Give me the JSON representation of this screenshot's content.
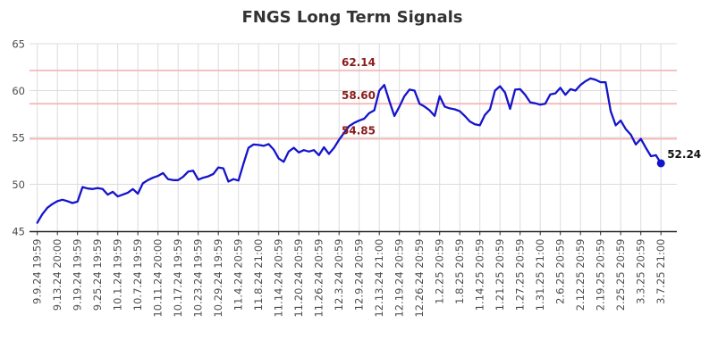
{
  "title": "FNGS Long Term Signals",
  "chart_data": {
    "type": "line",
    "title": "FNGS Long Term Signals",
    "xlabel": "",
    "ylabel": "",
    "ylim": [
      45,
      65
    ],
    "yticks": [
      45,
      50,
      55,
      60,
      65
    ],
    "grid": true,
    "legend": "none",
    "x_tick_labels": [
      "9.9.24 19:59",
      "9.13.24 20:00",
      "9.19.24 19:59",
      "9.25.24 19:59",
      "10.1.24 19:59",
      "10.7.24 19:59",
      "10.11.24 20:00",
      "10.17.24 19:59",
      "10.23.24 19:59",
      "10.29.24 19:59",
      "11.4.24 20:59",
      "11.8.24 21:00",
      "11.14.24 20:59",
      "11.20.24 20:59",
      "11.26.24 20:59",
      "12.3.24 20:59",
      "12.9.24 20:59",
      "12.13.24 21:00",
      "12.19.24 20:59",
      "12.26.24 20:59",
      "1.2.25 20:59",
      "1.8.25 20:59",
      "1.14.25 20:59",
      "1.21.25 20:59",
      "1.27.25 20:59",
      "1.31.25 21:00",
      "2.6.25 20:59",
      "2.12.25 20:59",
      "2.19.25 20:59",
      "2.25.25 20:59",
      "3.3.25 20:59",
      "3.7.25 21:00"
    ],
    "points_per_label_interval": 4,
    "series": [
      {
        "name": "FNGS",
        "color": "#1414cc",
        "values": [
          45.9,
          46.8,
          47.5,
          47.9,
          48.2,
          48.35,
          48.2,
          48.0,
          48.15,
          49.7,
          49.55,
          49.5,
          49.6,
          49.5,
          48.9,
          49.2,
          48.7,
          48.9,
          49.1,
          49.5,
          49.0,
          50.1,
          50.45,
          50.7,
          50.9,
          51.2,
          50.55,
          50.45,
          50.45,
          50.8,
          51.35,
          51.45,
          50.5,
          50.7,
          50.85,
          51.1,
          51.8,
          51.7,
          50.3,
          50.55,
          50.4,
          52.2,
          53.9,
          54.25,
          54.2,
          54.1,
          54.3,
          53.7,
          52.75,
          52.4,
          53.5,
          53.9,
          53.4,
          53.65,
          53.5,
          53.65,
          53.1,
          53.95,
          53.25,
          53.9,
          54.75,
          55.5,
          56.2,
          56.55,
          56.8,
          57.0,
          57.6,
          57.9,
          60.0,
          60.6,
          58.9,
          57.3,
          58.3,
          59.4,
          60.1,
          60.0,
          58.6,
          58.3,
          57.9,
          57.3,
          59.4,
          58.3,
          58.1,
          58.0,
          57.8,
          57.3,
          56.7,
          56.4,
          56.3,
          57.4,
          58.0,
          60.0,
          60.47,
          59.8,
          58.05,
          60.1,
          60.15,
          59.55,
          58.75,
          58.65,
          58.5,
          58.6,
          59.6,
          59.7,
          60.3,
          59.55,
          60.15,
          60.0,
          60.6,
          61.0,
          61.3,
          61.15,
          60.9,
          60.9,
          57.8,
          56.3,
          56.8,
          55.9,
          55.3,
          54.25,
          54.85,
          53.9,
          53.0,
          53.1,
          52.24
        ]
      }
    ],
    "reference_lines": [
      {
        "label": "62.14",
        "value": 62.14,
        "line_color": "#f5b8b8",
        "label_color": "#8b1a1a"
      },
      {
        "label": "58.60",
        "value": 58.6,
        "line_color": "#f5b8b8",
        "label_color": "#8b1a1a"
      },
      {
        "label": "54.85",
        "value": 54.85,
        "line_color": "#f5b8b8",
        "label_color": "#8b1a1a"
      }
    ],
    "end_point": {
      "label": "52.24",
      "value": 52.24,
      "marker": "dot",
      "label_color": "#111111"
    },
    "colors": {
      "background": "#ffffff",
      "grid": "#dcdcdc",
      "axis": "#262626",
      "tick_label": "#4d4d4d",
      "title": "#333333",
      "line": "#1414cc"
    }
  }
}
